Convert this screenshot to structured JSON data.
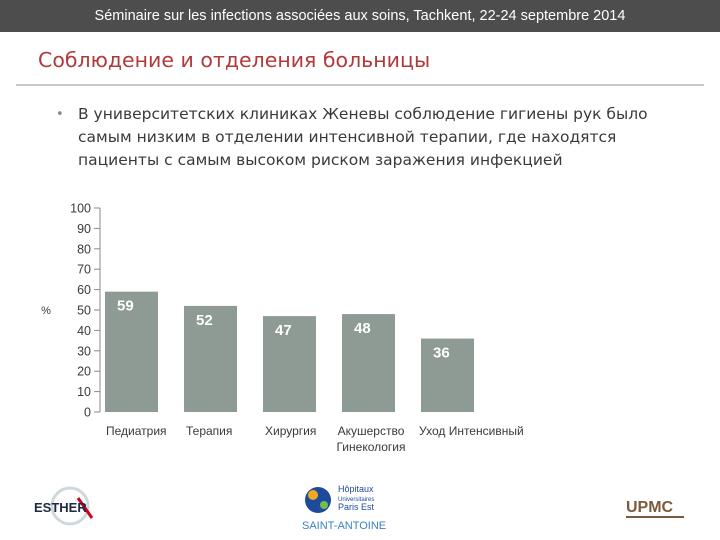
{
  "header": {
    "text": "Séminaire sur les infections associées aux soins, Tachkent, 22-24 septembre 2014"
  },
  "slide": {
    "title": "Соблюдение и отделения больницы",
    "bullet": "В университетских клиниках Женевы соблюдение гигиены рук было самым низким в отделении интенсивной терапии, где находятся пациенты с самым высоком риском заражения инфекцией"
  },
  "chart_data": {
    "type": "bar",
    "ylabel": "%",
    "ylim": [
      0,
      100
    ],
    "yticks": [
      0,
      10,
      20,
      30,
      40,
      50,
      60,
      70,
      80,
      90,
      100
    ],
    "categories": [
      "Педиатрия",
      "Терапия",
      "Хирургия",
      "Акушерство Гинекология",
      "Уход Интенсивный"
    ],
    "values": [
      59,
      52,
      47,
      48,
      36
    ],
    "data_labels": [
      "59",
      "52",
      "47",
      "48",
      "36"
    ],
    "bar_color": "#8e9b94",
    "label_color": "#ffffff",
    "grid": false
  },
  "logos": {
    "esther": "ESTHER",
    "hopitaux_lines": [
      "Hôpitaux",
      "Universitaires",
      "Paris Est"
    ],
    "saint_antoine": "SAINT-ANTOINE",
    "upmc": "UPMC"
  },
  "colors": {
    "header_bg": "#4d4d4d",
    "title": "#b03a3a",
    "bar": "#8e9b94"
  }
}
